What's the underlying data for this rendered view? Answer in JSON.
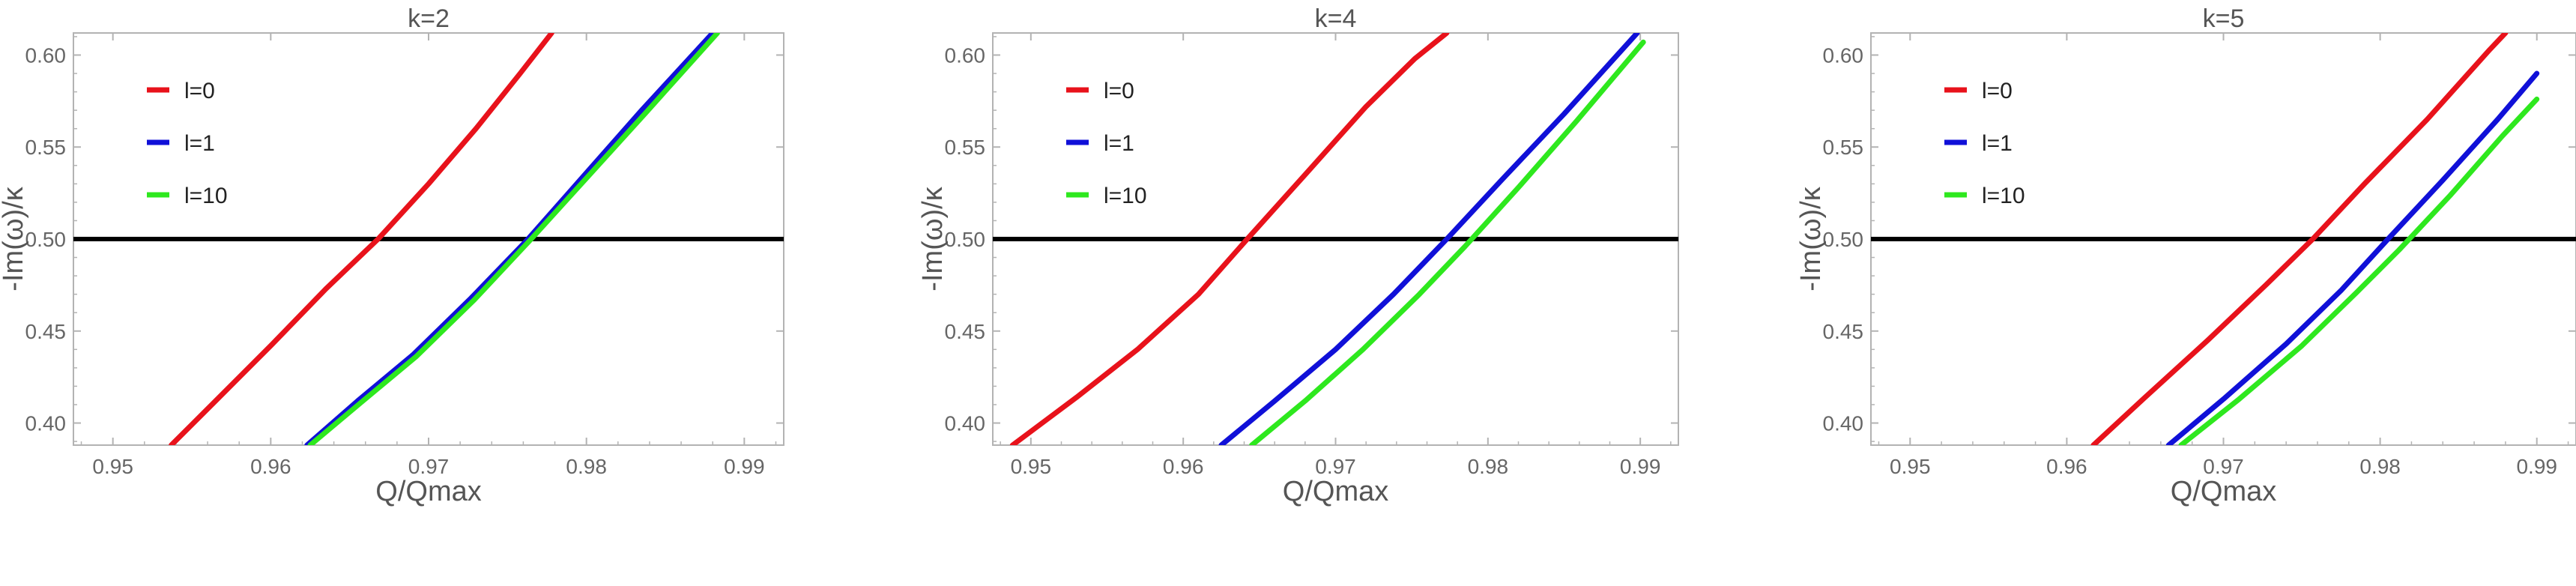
{
  "chart_data": [
    {
      "type": "line",
      "title": "k=2",
      "xlabel": "Q/Qmax",
      "ylabel": "-Im(ω)/κ",
      "xlim": [
        0.9475,
        0.9925
      ],
      "ylim": [
        0.388,
        0.612
      ],
      "xticks": [
        "0.95",
        "0.96",
        "0.97",
        "0.98",
        "0.99"
      ],
      "yticks": [
        "0.40",
        "0.45",
        "0.50",
        "0.55",
        "0.60"
      ],
      "xtick_values": [
        0.95,
        0.96,
        0.97,
        0.98,
        0.99
      ],
      "ytick_values": [
        0.4,
        0.45,
        0.5,
        0.55,
        0.6
      ],
      "legend_position": "top-left",
      "hline": 0.5,
      "series": [
        {
          "name": "l=0",
          "color": "#e8121b",
          "x": [
            0.9537,
            0.9565,
            0.96,
            0.9635,
            0.9668,
            0.97,
            0.973,
            0.9758,
            0.9778
          ],
          "y": [
            0.388,
            0.412,
            0.442,
            0.473,
            0.5,
            0.53,
            0.56,
            0.59,
            0.612
          ]
        },
        {
          "name": "l=1",
          "color": "#1010d8",
          "x": [
            0.9623,
            0.9655,
            0.969,
            0.9727,
            0.9763,
            0.98,
            0.9835,
            0.988
          ],
          "y": [
            0.388,
            0.412,
            0.437,
            0.468,
            0.5,
            0.536,
            0.57,
            0.612
          ]
        },
        {
          "name": "l=10",
          "color": "#2ee81e",
          "x": [
            0.9625,
            0.9657,
            0.9692,
            0.9729,
            0.9765,
            0.9802,
            0.9838,
            0.9883
          ],
          "y": [
            0.388,
            0.411,
            0.436,
            0.467,
            0.5,
            0.535,
            0.569,
            0.612
          ]
        }
      ]
    },
    {
      "type": "line",
      "title": "k=4",
      "xlabel": "Q/Qmax",
      "ylabel": "-Im(ω)/κ",
      "xlim": [
        0.9475,
        0.9925
      ],
      "ylim": [
        0.388,
        0.612
      ],
      "xticks": [
        "0.95",
        "0.96",
        "0.97",
        "0.98",
        "0.99"
      ],
      "yticks": [
        "0.40",
        "0.45",
        "0.50",
        "0.55",
        "0.60"
      ],
      "xtick_values": [
        0.95,
        0.96,
        0.97,
        0.98,
        0.99
      ],
      "ytick_values": [
        0.4,
        0.45,
        0.5,
        0.55,
        0.6
      ],
      "legend_position": "top-left",
      "hline": 0.5,
      "series": [
        {
          "name": "l=0",
          "color": "#e8121b",
          "x": [
            0.9488,
            0.953,
            0.957,
            0.961,
            0.9642,
            0.968,
            0.972,
            0.9752,
            0.9773
          ],
          "y": [
            0.388,
            0.414,
            0.44,
            0.47,
            0.5,
            0.535,
            0.572,
            0.598,
            0.612
          ]
        },
        {
          "name": "l=1",
          "color": "#1010d8",
          "x": [
            0.9625,
            0.966,
            0.97,
            0.9738,
            0.9773,
            0.981,
            0.985,
            0.9898
          ],
          "y": [
            0.388,
            0.412,
            0.44,
            0.47,
            0.5,
            0.533,
            0.568,
            0.612
          ]
        },
        {
          "name": "l=10",
          "color": "#2ee81e",
          "x": [
            0.9645,
            0.968,
            0.9718,
            0.9755,
            0.9785,
            0.982,
            0.9858,
            0.9902
          ],
          "y": [
            0.388,
            0.412,
            0.44,
            0.47,
            0.496,
            0.528,
            0.564,
            0.607
          ]
        }
      ]
    },
    {
      "type": "line",
      "title": "k=5",
      "xlabel": "Q/Qmax",
      "ylabel": "-Im(ω)/κ",
      "xlim": [
        0.9475,
        0.9925
      ],
      "ylim": [
        0.388,
        0.612
      ],
      "xticks": [
        "0.95",
        "0.96",
        "0.97",
        "0.98",
        "0.99"
      ],
      "yticks": [
        "0.40",
        "0.45",
        "0.50",
        "0.55",
        "0.60"
      ],
      "xtick_values": [
        0.95,
        0.96,
        0.97,
        0.98,
        0.99
      ],
      "ytick_values": [
        0.4,
        0.45,
        0.5,
        0.55,
        0.6
      ],
      "legend_position": "top-left",
      "hline": 0.5,
      "series": [
        {
          "name": "l=0",
          "color": "#e8121b",
          "x": [
            0.9617,
            0.965,
            0.969,
            0.9727,
            0.9757,
            0.979,
            0.983,
            0.987,
            0.988
          ],
          "y": [
            0.388,
            0.414,
            0.445,
            0.475,
            0.5,
            0.53,
            0.565,
            0.603,
            0.612
          ]
        },
        {
          "name": "l=1",
          "color": "#1010d8",
          "x": [
            0.9665,
            0.97,
            0.974,
            0.9775,
            0.9805,
            0.984,
            0.9875,
            0.99
          ],
          "y": [
            0.388,
            0.413,
            0.443,
            0.472,
            0.5,
            0.532,
            0.565,
            0.59
          ]
        },
        {
          "name": "l=10",
          "color": "#2ee81e",
          "x": [
            0.9673,
            0.971,
            0.975,
            0.9785,
            0.9812,
            0.9845,
            0.9878,
            0.99
          ],
          "y": [
            0.388,
            0.413,
            0.442,
            0.471,
            0.494,
            0.524,
            0.556,
            0.576
          ]
        }
      ]
    }
  ]
}
